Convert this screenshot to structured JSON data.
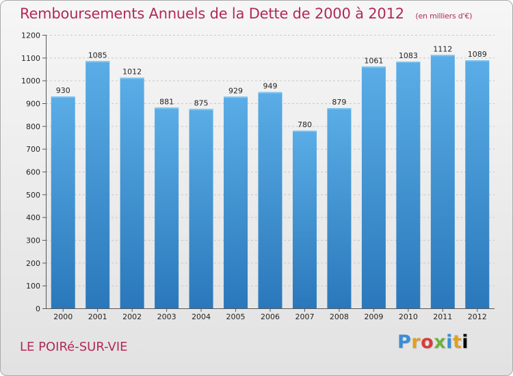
{
  "header": {
    "title": "Remboursements Annuels de la Dette de 2000 à 2012",
    "subtitle": "(en milliers d'€)"
  },
  "footer": {
    "city": "LE POIRé-SUR-VIE",
    "logo_text": "Proxiti"
  },
  "colors": {
    "bar_top": "#5aade6",
    "bar_bottom": "#2a78bb",
    "accent": "#b2285a"
  },
  "chart_data": {
    "type": "bar",
    "title": "Remboursements Annuels de la Dette de 2000 à 2012",
    "xlabel": "",
    "ylabel": "",
    "ylim": [
      0,
      1200
    ],
    "yticks": [
      0,
      100,
      200,
      300,
      400,
      500,
      600,
      700,
      800,
      900,
      1000,
      1100,
      1200
    ],
    "grid": true,
    "categories": [
      "2000",
      "2001",
      "2002",
      "2003",
      "2004",
      "2005",
      "2006",
      "2007",
      "2008",
      "2009",
      "2010",
      "2011",
      "2012"
    ],
    "values": [
      930,
      1085,
      1012,
      881,
      875,
      929,
      949,
      780,
      879,
      1061,
      1083,
      1112,
      1089
    ]
  }
}
